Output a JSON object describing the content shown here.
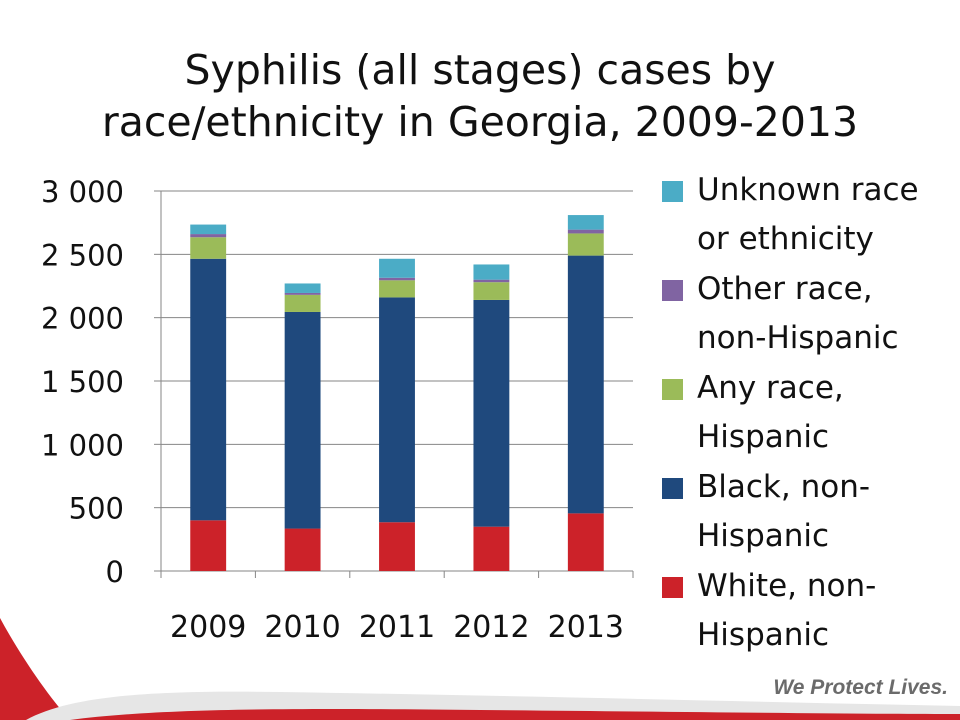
{
  "title": {
    "line1": "Syphilis (all stages) cases by",
    "line2": "race/ethnicity in Georgia, 2009-2013"
  },
  "chart_data": {
    "type": "bar",
    "stacked": true,
    "categories": [
      "2009",
      "2010",
      "2011",
      "2012",
      "2013"
    ],
    "series": [
      {
        "name": "White, non-Hispanic",
        "color": "#cc2229",
        "values": [
          400,
          335,
          385,
          350,
          455
        ]
      },
      {
        "name": "Black, non-Hispanic",
        "color": "#1f497d",
        "values": [
          2065,
          1710,
          1775,
          1790,
          2035
        ]
      },
      {
        "name": "Any race, Hispanic",
        "color": "#9bbb59",
        "values": [
          170,
          135,
          135,
          140,
          175
        ]
      },
      {
        "name": "Other race, non-Hispanic",
        "color": "#8064a2",
        "values": [
          25,
          15,
          20,
          20,
          30
        ]
      },
      {
        "name": "Unknown race or ethnicity",
        "color": "#4bacc6",
        "values": [
          75,
          75,
          150,
          120,
          115
        ]
      }
    ],
    "ylim": [
      0,
      3000
    ],
    "yticks": [
      0,
      500,
      1000,
      1500,
      2000,
      2500,
      3000
    ],
    "ytick_labels": [
      "0",
      "500",
      "1 000",
      "1 500",
      "2 000",
      "2 500",
      "3 000"
    ],
    "grid": true,
    "legend_position": "right",
    "xlabel": "",
    "ylabel": ""
  },
  "legend": [
    {
      "lines": [
        "Unknown race",
        "or ethnicity"
      ],
      "color": "#4bacc6"
    },
    {
      "lines": [
        "Other race,",
        "non-Hispanic"
      ],
      "color": "#8064a2"
    },
    {
      "lines": [
        "Any race,",
        "Hispanic"
      ],
      "color": "#9bbb59"
    },
    {
      "lines": [
        "Black, non-",
        "Hispanic"
      ],
      "color": "#1f497d"
    },
    {
      "lines": [
        "White, non-",
        "Hispanic"
      ],
      "color": "#cc2229"
    }
  ],
  "footer": {
    "tagline": "We Protect Lives.",
    "accent_color": "#cc2229"
  }
}
